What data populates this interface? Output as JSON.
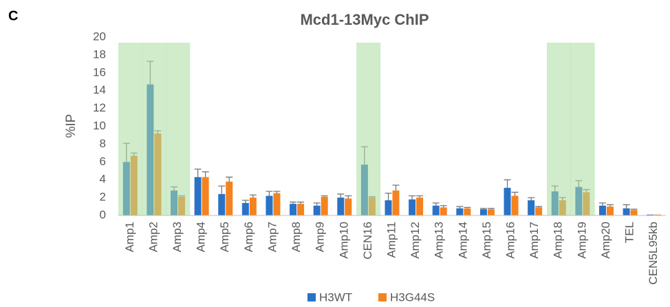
{
  "panel_label": "C",
  "chart_data": {
    "type": "bar",
    "title": "Mcd1-13Myc ChIP",
    "ylabel": "%IP",
    "categories": [
      "Amp1",
      "Amp2",
      "Amp3",
      "Amp4",
      "Amp5",
      "Amp6",
      "Amp7",
      "Amp8",
      "Amp9",
      "Amp10",
      "CEN16",
      "Amp11",
      "Amp12",
      "Amp13",
      "Amp14",
      "Amp15",
      "Amp16",
      "Amp17",
      "Amp18",
      "Amp19",
      "Amp20",
      "TEL",
      "CEN5L95kb"
    ],
    "series": [
      {
        "name": "H3WT",
        "color": "#2a72c6",
        "values": [
          6.0,
          14.7,
          2.8,
          4.3,
          2.4,
          1.4,
          2.2,
          1.3,
          1.1,
          2.0,
          5.7,
          1.7,
          1.8,
          1.1,
          0.8,
          0.7,
          3.1,
          1.7,
          2.7,
          3.2,
          1.1,
          0.8,
          0.1
        ],
        "errors": [
          2.1,
          2.6,
          0.4,
          0.9,
          0.9,
          0.3,
          0.5,
          0.2,
          0.3,
          0.4,
          2.0,
          0.8,
          0.4,
          0.3,
          0.2,
          0.1,
          0.9,
          0.3,
          0.6,
          0.7,
          0.3,
          0.4,
          0
        ]
      },
      {
        "name": "H3G44S",
        "color": "#f4831f",
        "values": [
          6.7,
          9.2,
          2.1,
          4.3,
          3.8,
          2.0,
          2.5,
          1.3,
          2.1,
          1.9,
          2.0,
          2.8,
          2.0,
          0.9,
          0.8,
          0.7,
          2.2,
          0.9,
          1.7,
          2.6,
          1.0,
          0.6,
          0.1
        ],
        "errors": [
          0.3,
          0.3,
          0.1,
          0.6,
          0.5,
          0.3,
          0.2,
          0.2,
          0.1,
          0.3,
          0.1,
          0.6,
          0.2,
          0.2,
          0.1,
          0.1,
          0.4,
          0.1,
          0.3,
          0.3,
          0.2,
          0.1,
          0
        ]
      }
    ],
    "ylim": [
      0,
      20
    ],
    "yticks": [
      0,
      2,
      4,
      6,
      8,
      10,
      12,
      14,
      16,
      18,
      20
    ],
    "highlight": {
      "color": "#a9dca0",
      "categories": [
        "Amp1",
        "Amp2",
        "Amp3",
        "CEN16",
        "Amp18",
        "Amp19"
      ]
    },
    "legend": "bottom"
  }
}
